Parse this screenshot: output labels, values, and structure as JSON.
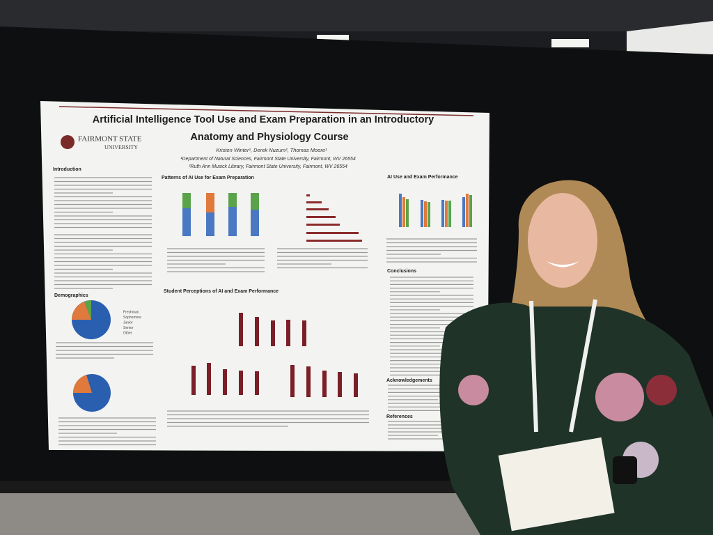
{
  "poster": {
    "title": [
      "Artificial Intelligence Tool Use and Exam Preparation in an Introductory",
      "Anatomy and Physiology Course"
    ],
    "logo": [
      "FAIRMONT STATE",
      "UNIVERSITY"
    ],
    "authors": "Kristen Winter¹, Derek Nuzum², Thomas Moore¹",
    "affiliations": [
      "¹Department of Natural Sciences, Fairmont State University, Fairmont, WV 26554",
      "²Ruth Ann Musick Library, Fairmont State University, Fairmont, WV 26554"
    ],
    "sections": {
      "introduction": "Introduction",
      "patterns": "Patterns of AI Use for Exam Preparation",
      "performance": "AI Use and Exam Performance",
      "demographics": "Demographics",
      "perceptions": "Student Perceptions of AI and Exam Performance",
      "conclusions": "Conclusions",
      "acknowledgements": "Acknowledgements",
      "references": "References"
    },
    "demographics_legend": [
      "Freshman",
      "Sophomore",
      "Junior",
      "Senior",
      "Other"
    ]
  }
}
